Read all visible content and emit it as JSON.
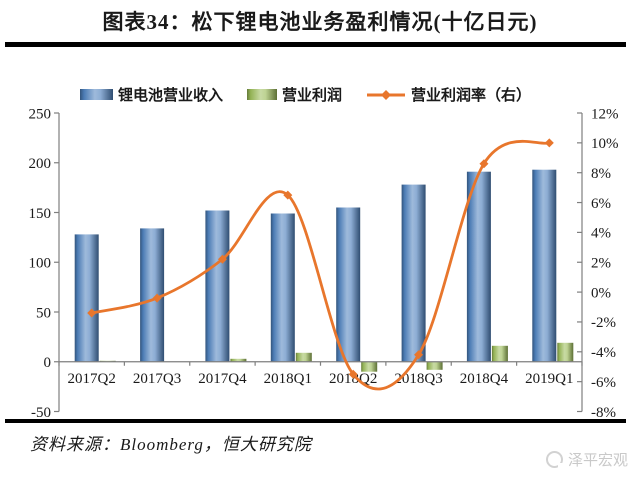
{
  "page": {
    "title": "图表34：松下锂电池业务盈利情况(十亿日元)",
    "source_note": "资料来源：Bloomberg，恒大研究院",
    "watermark": "泽平宏观"
  },
  "colors": {
    "revenue_bar": "#4f81bd",
    "profit_bar": "#9bbb59",
    "margin_line": "#e8762c",
    "axis": "#7f7f7f",
    "text": "#1a1a1a",
    "divider": "#000000",
    "watermark": "#c9c9c9"
  },
  "chart_data": {
    "type": "bar+line",
    "title": "图表34：松下锂电池业务盈利情况(十亿日元)",
    "unit": "十亿日元",
    "categories": [
      "2017Q2",
      "2017Q3",
      "2017Q4",
      "2018Q1",
      "2018Q2",
      "2018Q3",
      "2018Q4",
      "2019Q1"
    ],
    "series": [
      {
        "name": "锂电池营业收入",
        "type": "bar",
        "axis": "left",
        "color": "#4f81bd",
        "values": [
          128,
          134,
          152,
          149,
          155,
          178,
          191,
          193
        ]
      },
      {
        "name": "营业利润",
        "type": "bar",
        "axis": "left",
        "color": "#9bbb59",
        "values": [
          1,
          0,
          3,
          9,
          -10,
          -8,
          16,
          19
        ]
      },
      {
        "name": "营业利润率（右）",
        "type": "line",
        "axis": "right",
        "color": "#e8762c",
        "marker": "diamond",
        "values": [
          -1.4,
          -0.4,
          2.2,
          6.5,
          -5.5,
          -4.2,
          8.6,
          10.0
        ]
      }
    ],
    "left_axis": {
      "min": -50,
      "max": 250,
      "step": 50
    },
    "right_axis": {
      "min": -8,
      "max": 12,
      "step": 2,
      "format": "percent"
    },
    "grid": false,
    "legend_position": "top"
  }
}
